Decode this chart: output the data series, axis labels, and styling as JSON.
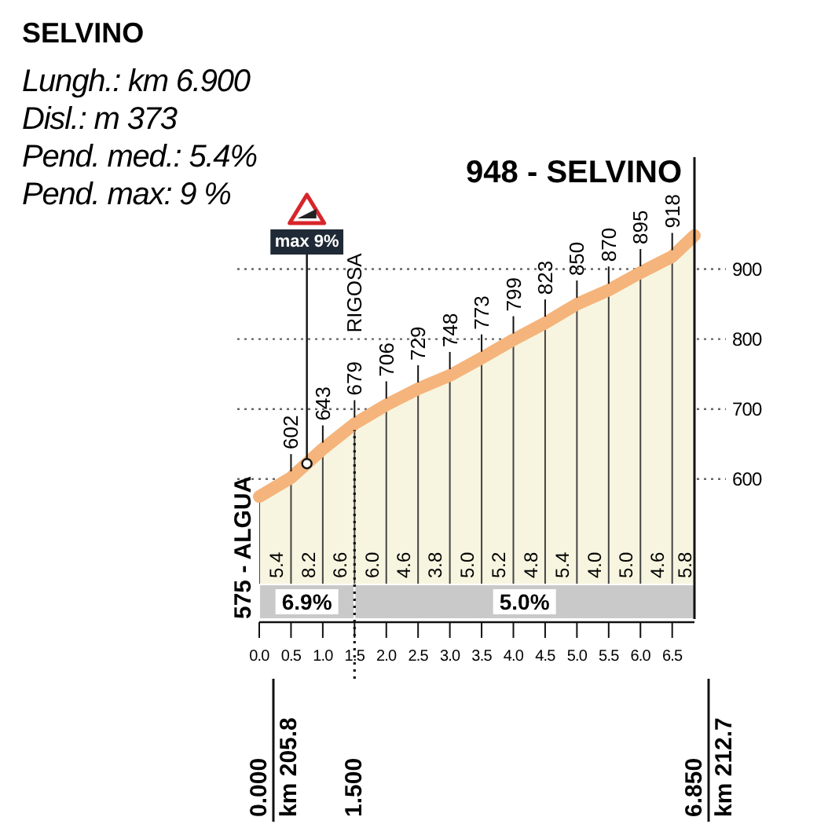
{
  "chart_data": {
    "type": "area",
    "title": "SELVINO",
    "subtitle": "Lungh.: km 6.900\nDisl.: m 373\nPend. med.: 5.4%\nPend. max: 9 %",
    "x": [
      0,
      0.5,
      1,
      1.5,
      2,
      2.5,
      3,
      3.5,
      4,
      4.5,
      5,
      5.5,
      6,
      6.5,
      6.85
    ],
    "values": [
      575,
      602,
      643,
      679,
      706,
      729,
      748,
      773,
      799,
      823,
      850,
      870,
      895,
      918,
      948
    ],
    "value_labels": [
      "575 - ALGUA",
      "602",
      "643",
      "679",
      "706",
      "729",
      "748",
      "773",
      "799",
      "823",
      "850",
      "870",
      "895",
      "918",
      "948 - SELVINO"
    ],
    "color": "#f5b47b",
    "xlim": [
      0,
      6.85
    ],
    "xticks": [
      {
        "value": 0,
        "label": "0.0"
      },
      {
        "value": 0.5,
        "label": "0.5"
      },
      {
        "value": 1,
        "label": "1.0"
      },
      {
        "value": 1.5,
        "label": "1.5"
      },
      {
        "value": 2,
        "label": "2.0"
      },
      {
        "value": 2.5,
        "label": "2.5"
      },
      {
        "value": 3,
        "label": "3.0"
      },
      {
        "value": 3.5,
        "label": "3.5"
      },
      {
        "value": 4,
        "label": "4.0"
      },
      {
        "value": 4.5,
        "label": "4.5"
      },
      {
        "value": 5,
        "label": "5.0"
      },
      {
        "value": 5.5,
        "label": "5.5"
      },
      {
        "value": 6,
        "label": "6.0"
      },
      {
        "value": 6.5,
        "label": "6.5"
      }
    ],
    "x2lim": [
      0,
      6.85
    ],
    "x2ticks": [
      {
        "value": 0,
        "label": "0.000"
      },
      {
        "value": 1.5,
        "label": "1.500"
      },
      {
        "value": 6.85,
        "label": "6.850"
      }
    ],
    "ylim": [
      400,
      1060
    ],
    "yticks": [
      600,
      700,
      800,
      900
    ],
    "grid": true,
    "ref_lines": [
      {
        "axis": "x",
        "value": 1.5,
        "label": "RIGOSA",
        "line_style": "dotted"
      }
    ],
    "bands": [
      {
        "axis": "x",
        "from": 0,
        "to": 1.5,
        "label": "6.9%",
        "color": "#c9c9c9"
      },
      {
        "axis": "x",
        "from": 1.5,
        "to": 6.85,
        "label": "5.0%",
        "color": "#c9c9c9"
      }
    ],
    "annotations": [
      {
        "text": "max 9%",
        "x": 0.75,
        "y": 622
      },
      "5.4",
      "8.2",
      "6.6",
      "6.0",
      "4.6",
      "3.8",
      "5.0",
      "5.2",
      "4.8",
      "5.4",
      "4.0",
      "5.0",
      "4.6",
      "5.8",
      "km 205.8",
      "km 212.7"
    ]
  }
}
